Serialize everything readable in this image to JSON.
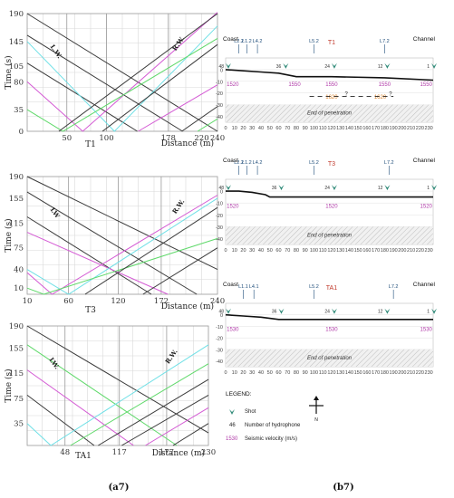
{
  "colors": {
    "cyan": "#6fe0e6",
    "green": "#5fd96a",
    "magenta": "#d45ad4",
    "black": "#3a3a3a",
    "velocity": "#b03aa8",
    "shot": "#2f8a78",
    "grid": "#d8d8d8",
    "hatch": "#bfbfbf",
    "red": "#c0392b",
    "orange": "#d9822b"
  },
  "captions": {
    "a": "(a7)",
    "b": "(b7)"
  },
  "chart_data": [
    {
      "type": "line",
      "panel": "T1",
      "xlabel": "Distance (m)",
      "ylabel": "Time (s)",
      "xlim": [
        0,
        240
      ],
      "ylim": [
        0,
        190
      ],
      "xticks": [
        50,
        100,
        178,
        220,
        240
      ],
      "yticks": [
        0,
        35,
        80,
        105,
        145,
        190
      ],
      "vlines": [
        50,
        100,
        178
      ],
      "lw_label": "L.W.",
      "rw_label": "R.W.",
      "series": [
        {
          "color": "black",
          "points": [
            [
              0,
              190
            ],
            [
              240,
              0
            ]
          ]
        },
        {
          "color": "black",
          "points": [
            [
              0,
              155
            ],
            [
              196,
              0
            ]
          ]
        },
        {
          "color": "black",
          "points": [
            [
              0,
              110
            ],
            [
              139,
              0
            ]
          ]
        },
        {
          "color": "cyan",
          "points": [
            [
              0,
              145
            ],
            [
              110,
              0
            ],
            [
              240,
              170
            ]
          ]
        },
        {
          "color": "magenta",
          "points": [
            [
              0,
              80
            ],
            [
              70,
              0
            ],
            [
              240,
              192
            ]
          ]
        },
        {
          "color": "green",
          "points": [
            [
              0,
              35
            ],
            [
              45,
              0
            ],
            [
              240,
              150
            ]
          ]
        },
        {
          "color": "black",
          "points": [
            [
              40,
              0
            ],
            [
              240,
              190
            ]
          ]
        },
        {
          "color": "black",
          "points": [
            [
              95,
              0
            ],
            [
              240,
              140
            ]
          ]
        },
        {
          "color": "magenta",
          "points": [
            [
              140,
              0
            ],
            [
              240,
              75
            ]
          ]
        },
        {
          "color": "black",
          "points": [
            [
              195,
              0
            ],
            [
              240,
              40
            ]
          ]
        },
        {
          "color": "green",
          "points": [
            [
              215,
              0
            ],
            [
              240,
              20
            ]
          ]
        }
      ]
    },
    {
      "type": "line",
      "panel": "T3",
      "xlabel": "Distance (m)",
      "ylabel": "Time (s)",
      "xlim": [
        10,
        240
      ],
      "ylim": [
        0,
        190
      ],
      "xticks": [
        10,
        60,
        120,
        172,
        240
      ],
      "yticks": [
        10,
        40,
        75,
        115,
        155,
        190
      ],
      "vlines": [
        60,
        120,
        172
      ],
      "lw_label": "LW",
      "rw_label": "R.W.",
      "series": [
        {
          "color": "black",
          "points": [
            [
              10,
              190
            ],
            [
              240,
              40
            ]
          ]
        },
        {
          "color": "black",
          "points": [
            [
              10,
              165
            ],
            [
              215,
              0
            ]
          ]
        },
        {
          "color": "black",
          "points": [
            [
              10,
              125
            ],
            [
              160,
              0
            ]
          ]
        },
        {
          "color": "magenta",
          "points": [
            [
              10,
              100
            ],
            [
              180,
              0
            ]
          ]
        },
        {
          "color": "cyan",
          "points": [
            [
              10,
              40
            ],
            [
              60,
              0
            ],
            [
              240,
              155
            ]
          ]
        },
        {
          "color": "magenta",
          "points": [
            [
              10,
              35
            ],
            [
              40,
              0
            ],
            [
              240,
              160
            ]
          ]
        },
        {
          "color": "green",
          "points": [
            [
              10,
              10
            ],
            [
              30,
              0
            ],
            [
              240,
              90
            ]
          ]
        },
        {
          "color": "black",
          "points": [
            [
              80,
              0
            ],
            [
              240,
              140
            ]
          ]
        },
        {
          "color": "black",
          "points": [
            [
              150,
              0
            ],
            [
              240,
              75
            ]
          ]
        }
      ]
    },
    {
      "type": "line",
      "panel": "TA1",
      "xlabel": "Distance (m)",
      "ylabel": "Time (s)",
      "xlim": [
        0,
        230
      ],
      "ylim": [
        0,
        190
      ],
      "xticks": [
        48,
        117,
        177,
        230
      ],
      "yticks": [
        35,
        75,
        115,
        155,
        190
      ],
      "vlines": [
        48,
        117,
        177
      ],
      "lw_label": "LW.",
      "rw_label": "R.W.",
      "series": [
        {
          "color": "black",
          "points": [
            [
              0,
              190
            ],
            [
              230,
              20
            ]
          ]
        },
        {
          "color": "green",
          "points": [
            [
              0,
              160
            ],
            [
              190,
              0
            ]
          ]
        },
        {
          "color": "magenta",
          "points": [
            [
              0,
              120
            ],
            [
              135,
              0
            ]
          ]
        },
        {
          "color": "black",
          "points": [
            [
              0,
              80
            ],
            [
              85,
              0
            ]
          ]
        },
        {
          "color": "cyan",
          "points": [
            [
              0,
              35
            ],
            [
              30,
              0
            ],
            [
              230,
              160
            ]
          ]
        },
        {
          "color": "green",
          "points": [
            [
              55,
              0
            ],
            [
              230,
              130
            ]
          ]
        },
        {
          "color": "black",
          "points": [
            [
              90,
              0
            ],
            [
              230,
              105
            ]
          ]
        },
        {
          "color": "black",
          "points": [
            [
              120,
              0
            ],
            [
              230,
              80
            ]
          ]
        },
        {
          "color": "magenta",
          "points": [
            [
              150,
              0
            ],
            [
              230,
              60
            ]
          ]
        },
        {
          "color": "black",
          "points": [
            [
              185,
              0
            ],
            [
              230,
              35
            ]
          ]
        }
      ]
    },
    {
      "type": "line",
      "panel": "T1",
      "title": "T1",
      "xlim": [
        0,
        235
      ],
      "ylim": [
        -45,
        10
      ],
      "xticks": [
        0,
        10,
        20,
        30,
        40,
        50,
        60,
        70,
        80,
        90,
        100,
        110,
        120,
        130,
        140,
        150,
        160,
        170,
        180,
        190,
        200,
        210,
        220,
        230
      ],
      "yticks": [
        0,
        -10,
        -20,
        -30,
        -40
      ],
      "left_label": "Coast",
      "right_label": "Channel",
      "seabed": [
        [
          0,
          0
        ],
        [
          20,
          -1
        ],
        [
          40,
          -2
        ],
        [
          60,
          -3
        ],
        [
          80,
          -6
        ],
        [
          120,
          -6
        ],
        [
          180,
          -7
        ],
        [
          235,
          -9
        ]
      ],
      "penetration_top": -30,
      "penetration_label": "End of penetration",
      "hydrophones": [
        {
          "label": "L2.2",
          "x": 15
        },
        {
          "label": "L1.2",
          "x": 24
        },
        {
          "label": "L4.2",
          "x": 36
        },
        {
          "label": "L5.2",
          "x": 100
        },
        {
          "label": "L7.2",
          "x": 180
        }
      ],
      "shots": [
        {
          "num": "48",
          "x": 0
        },
        {
          "num": "36",
          "x": 65
        },
        {
          "num": "24",
          "x": 120
        },
        {
          "num": "12",
          "x": 180
        },
        {
          "num": "1",
          "x": 233
        }
      ],
      "velocities": [
        {
          "v": "1520",
          "x": 8,
          "y": -14
        },
        {
          "v": "1550",
          "x": 78,
          "y": -14
        },
        {
          "v": "1550",
          "x": 120,
          "y": -14
        },
        {
          "v": "1550",
          "x": 180,
          "y": -14
        },
        {
          "v": "1550",
          "x": 227,
          "y": -14
        },
        {
          "v": "1620",
          "x": 120,
          "y": -25
        },
        {
          "v": "1620",
          "x": 175,
          "y": -25
        }
      ],
      "dashed_reflector": {
        "x0": 95,
        "x1": 190,
        "y": -23,
        "labels": [
          "?",
          "?"
        ]
      }
    },
    {
      "type": "line",
      "panel": "T3",
      "title": "T3",
      "xlim": [
        0,
        235
      ],
      "ylim": [
        -45,
        10
      ],
      "xticks": [
        0,
        10,
        20,
        30,
        40,
        50,
        60,
        70,
        80,
        90,
        100,
        110,
        120,
        130,
        140,
        150,
        160,
        170,
        180,
        190,
        200,
        210,
        220,
        230
      ],
      "yticks": [
        0,
        -10,
        -20,
        -30,
        -40
      ],
      "left_label": "Coast",
      "right_label": "Channel",
      "seabed": [
        [
          0,
          0
        ],
        [
          15,
          0
        ],
        [
          30,
          -1
        ],
        [
          45,
          -3
        ],
        [
          50,
          -5
        ],
        [
          80,
          -5
        ],
        [
          180,
          -5
        ],
        [
          235,
          -5
        ]
      ],
      "penetration_top": -30,
      "penetration_label": "End of penetration",
      "hydrophones": [
        {
          "label": "L2.2",
          "x": 15
        },
        {
          "label": "L1.2",
          "x": 24
        },
        {
          "label": "L4.2",
          "x": 36
        },
        {
          "label": "L5.2",
          "x": 100
        },
        {
          "label": "L7.2",
          "x": 185
        }
      ],
      "shots": [
        {
          "num": "48",
          "x": 0
        },
        {
          "num": "36",
          "x": 60
        },
        {
          "num": "24",
          "x": 120
        },
        {
          "num": "12",
          "x": 180
        },
        {
          "num": "1",
          "x": 233
        }
      ],
      "velocities": [
        {
          "v": "1520",
          "x": 8,
          "y": -14
        },
        {
          "v": "1520",
          "x": 120,
          "y": -14
        },
        {
          "v": "1520",
          "x": 227,
          "y": -14
        }
      ]
    },
    {
      "type": "line",
      "panel": "TA1",
      "title": "TA1",
      "xlim": [
        0,
        235
      ],
      "ylim": [
        -45,
        10
      ],
      "xticks": [
        0,
        10,
        20,
        30,
        40,
        50,
        60,
        70,
        80,
        90,
        100,
        110,
        120,
        130,
        140,
        150,
        160,
        170,
        180,
        190,
        200,
        210,
        220,
        230
      ],
      "yticks": [
        0,
        -10,
        -20,
        -30,
        -40
      ],
      "left_label": "Coast",
      "right_label": "Channel",
      "seabed": [
        [
          0,
          0
        ],
        [
          20,
          -1
        ],
        [
          40,
          -2
        ],
        [
          60,
          -4
        ],
        [
          80,
          -4
        ],
        [
          180,
          -4
        ],
        [
          235,
          -4
        ]
      ],
      "penetration_top": -30,
      "penetration_label": "End of penetration",
      "hydrophones": [
        {
          "label": "L1.1",
          "x": 20
        },
        {
          "label": "L4.1",
          "x": 32
        },
        {
          "label": "L5.2",
          "x": 100
        },
        {
          "label": "L7.2",
          "x": 190
        }
      ],
      "shots": [
        {
          "num": "48",
          "x": 0
        },
        {
          "num": "36",
          "x": 60
        },
        {
          "num": "24",
          "x": 120
        },
        {
          "num": "12",
          "x": 180
        },
        {
          "num": "1",
          "x": 233
        }
      ],
      "velocities": [
        {
          "v": "1530",
          "x": 8,
          "y": -14
        },
        {
          "v": "1530",
          "x": 120,
          "y": -14
        },
        {
          "v": "1530",
          "x": 227,
          "y": -14
        }
      ]
    }
  ],
  "legend": {
    "title": "LEGEND:",
    "shot": "Shot",
    "hydrophone_num": "46",
    "hydrophone_text": "Number of hydrophone",
    "velocity_num": "1530",
    "velocity_text": "Seismic velocity (m/s)",
    "north": "N"
  }
}
